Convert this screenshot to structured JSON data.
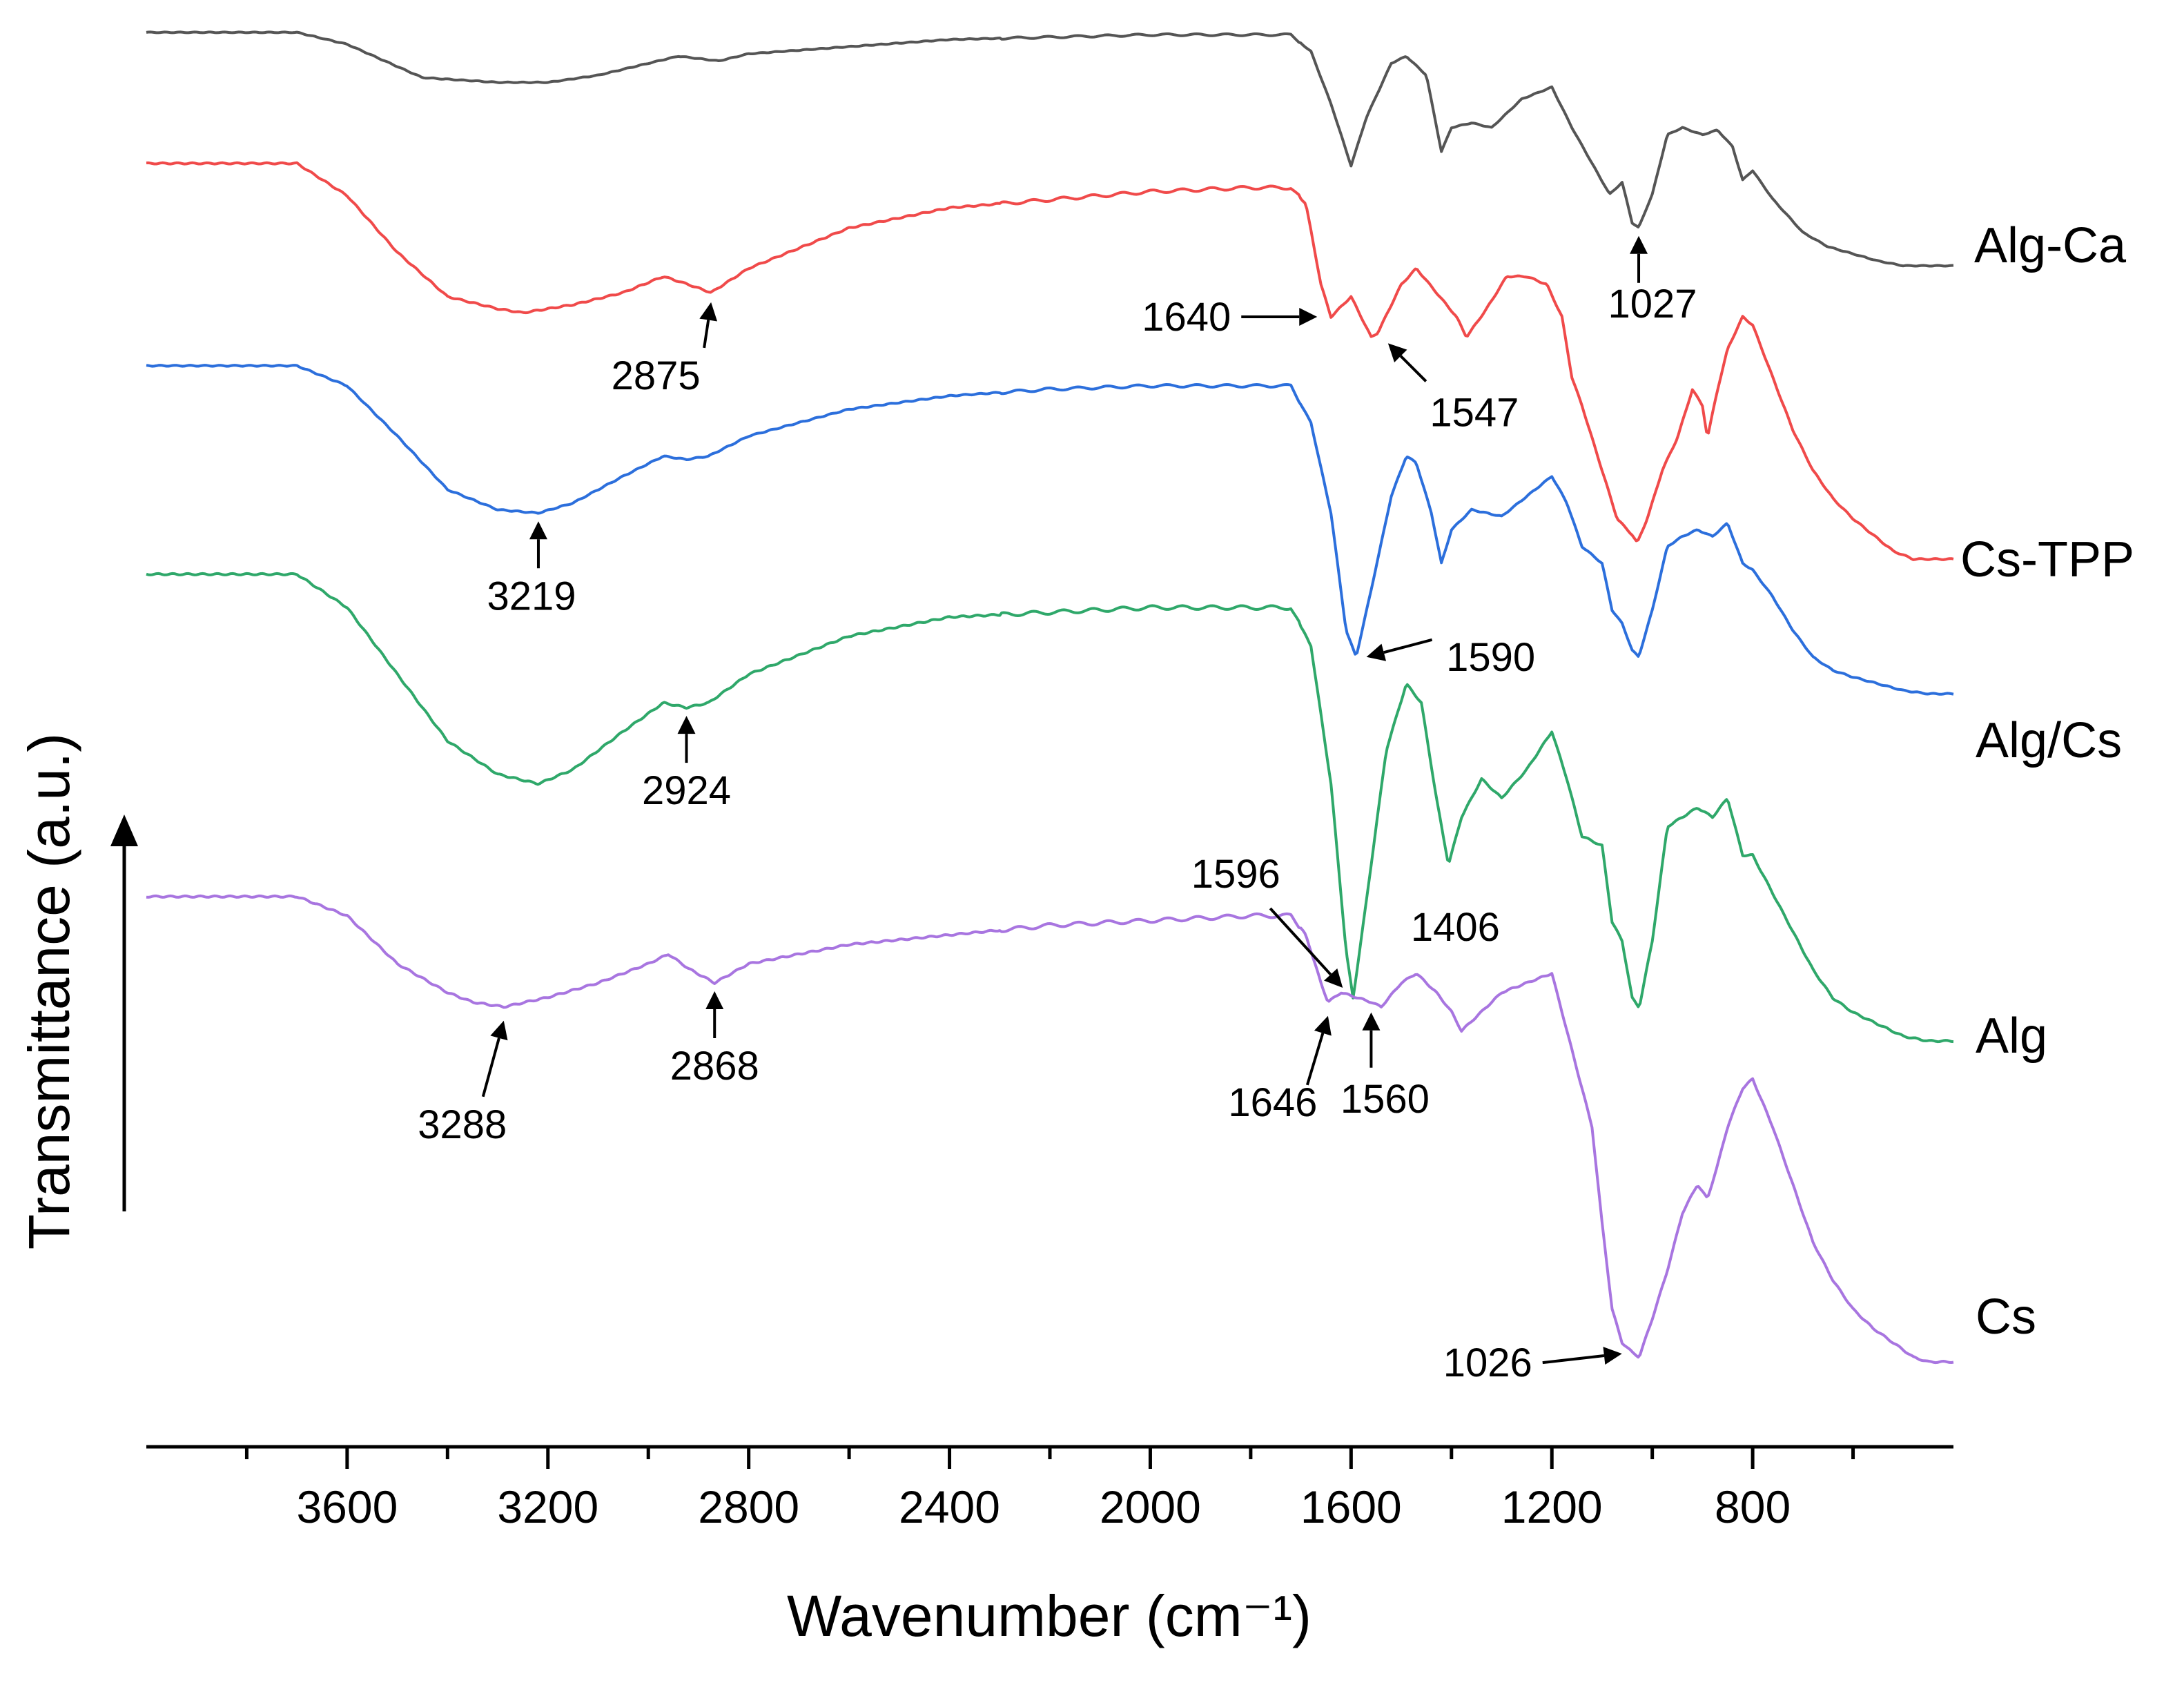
{
  "chart_data": {
    "type": "line",
    "title": "",
    "xlabel": "Wavenumber (cm⁻¹)",
    "ylabel": "Transmittance (a.u.)",
    "xlim": [
      4000,
      400
    ],
    "x_reversed": true,
    "xticks": [
      3600,
      3200,
      2800,
      2400,
      2000,
      1600,
      1200,
      800
    ],
    "minor_tick_step": 200,
    "grid": false,
    "y_units": "offset transmittance (a.u.)",
    "series": [
      {
        "name": "Alg-Ca",
        "color": "#555555",
        "points": [
          [
            4000,
            0.98
          ],
          [
            3700,
            0.98
          ],
          [
            3600,
            0.93
          ],
          [
            3450,
            0.79
          ],
          [
            3300,
            0.77
          ],
          [
            3200,
            0.77
          ],
          [
            3100,
            0.8
          ],
          [
            3000,
            0.85
          ],
          [
            2940,
            0.88
          ],
          [
            2900,
            0.87
          ],
          [
            2860,
            0.86
          ],
          [
            2800,
            0.89
          ],
          [
            2600,
            0.92
          ],
          [
            2400,
            0.95
          ],
          [
            2200,
            0.96
          ],
          [
            2000,
            0.97
          ],
          [
            1800,
            0.97
          ],
          [
            1720,
            0.97
          ],
          [
            1680,
            0.9
          ],
          [
            1640,
            0.68
          ],
          [
            1600,
            0.42
          ],
          [
            1570,
            0.62
          ],
          [
            1520,
            0.85
          ],
          [
            1490,
            0.88
          ],
          [
            1450,
            0.8
          ],
          [
            1420,
            0.48
          ],
          [
            1400,
            0.58
          ],
          [
            1360,
            0.6
          ],
          [
            1320,
            0.58
          ],
          [
            1260,
            0.7
          ],
          [
            1200,
            0.75
          ],
          [
            1160,
            0.58
          ],
          [
            1120,
            0.43
          ],
          [
            1085,
            0.3
          ],
          [
            1060,
            0.35
          ],
          [
            1040,
            0.18
          ],
          [
            1027,
            0.16
          ],
          [
            1000,
            0.3
          ],
          [
            970,
            0.55
          ],
          [
            940,
            0.58
          ],
          [
            900,
            0.55
          ],
          [
            870,
            0.57
          ],
          [
            840,
            0.5
          ],
          [
            820,
            0.36
          ],
          [
            800,
            0.4
          ],
          [
            760,
            0.28
          ],
          [
            700,
            0.14
          ],
          [
            650,
            0.08
          ],
          [
            600,
            0.05
          ],
          [
            550,
            0.02
          ],
          [
            500,
            0.0
          ],
          [
            450,
            0.0
          ]
        ],
        "peaks": [
          1027
        ]
      },
      {
        "name": "Cs-TPP",
        "color": "#f04a4a",
        "points": [
          [
            4000,
            0.98
          ],
          [
            3700,
            0.98
          ],
          [
            3600,
            0.9
          ],
          [
            3500,
            0.76
          ],
          [
            3400,
            0.65
          ],
          [
            3300,
            0.62
          ],
          [
            3250,
            0.61
          ],
          [
            3150,
            0.63
          ],
          [
            3050,
            0.66
          ],
          [
            2970,
            0.7
          ],
          [
            2920,
            0.68
          ],
          [
            2875,
            0.66
          ],
          [
            2800,
            0.72
          ],
          [
            2600,
            0.82
          ],
          [
            2400,
            0.87
          ],
          [
            2200,
            0.89
          ],
          [
            2000,
            0.91
          ],
          [
            1800,
            0.92
          ],
          [
            1720,
            0.92
          ],
          [
            1690,
            0.88
          ],
          [
            1660,
            0.68
          ],
          [
            1640,
            0.6
          ],
          [
            1600,
            0.65
          ],
          [
            1560,
            0.55
          ],
          [
            1547,
            0.56
          ],
          [
            1500,
            0.68
          ],
          [
            1470,
            0.72
          ],
          [
            1430,
            0.66
          ],
          [
            1390,
            0.6
          ],
          [
            1370,
            0.55
          ],
          [
            1330,
            0.62
          ],
          [
            1290,
            0.7
          ],
          [
            1250,
            0.7
          ],
          [
            1210,
            0.68
          ],
          [
            1180,
            0.6
          ],
          [
            1160,
            0.45
          ],
          [
            1140,
            0.38
          ],
          [
            1100,
            0.22
          ],
          [
            1070,
            0.1
          ],
          [
            1040,
            0.06
          ],
          [
            1030,
            0.04
          ],
          [
            1010,
            0.1
          ],
          [
            980,
            0.22
          ],
          [
            950,
            0.3
          ],
          [
            920,
            0.42
          ],
          [
            900,
            0.38
          ],
          [
            890,
            0.3
          ],
          [
            870,
            0.42
          ],
          [
            850,
            0.52
          ],
          [
            820,
            0.6
          ],
          [
            800,
            0.58
          ],
          [
            760,
            0.45
          ],
          [
            720,
            0.32
          ],
          [
            680,
            0.22
          ],
          [
            640,
            0.15
          ],
          [
            600,
            0.1
          ],
          [
            560,
            0.06
          ],
          [
            520,
            0.02
          ],
          [
            480,
            0.0
          ],
          [
            450,
            0.0
          ]
        ],
        "peaks": [
          2875,
          1640,
          1547
        ]
      },
      {
        "name": "Alg/Cs",
        "color": "#2c6fdc",
        "points": [
          [
            4000,
            0.99
          ],
          [
            3700,
            0.99
          ],
          [
            3600,
            0.93
          ],
          [
            3500,
            0.78
          ],
          [
            3400,
            0.62
          ],
          [
            3300,
            0.56
          ],
          [
            3219,
            0.55
          ],
          [
            3150,
            0.58
          ],
          [
            3050,
            0.66
          ],
          [
            2970,
            0.72
          ],
          [
            2924,
            0.71
          ],
          [
            2880,
            0.72
          ],
          [
            2800,
            0.78
          ],
          [
            2600,
            0.86
          ],
          [
            2400,
            0.9
          ],
          [
            2200,
            0.92
          ],
          [
            2000,
            0.93
          ],
          [
            1800,
            0.93
          ],
          [
            1720,
            0.93
          ],
          [
            1680,
            0.82
          ],
          [
            1640,
            0.55
          ],
          [
            1610,
            0.2
          ],
          [
            1590,
            0.12
          ],
          [
            1560,
            0.32
          ],
          [
            1520,
            0.6
          ],
          [
            1490,
            0.72
          ],
          [
            1470,
            0.7
          ],
          [
            1440,
            0.55
          ],
          [
            1420,
            0.4
          ],
          [
            1400,
            0.5
          ],
          [
            1360,
            0.56
          ],
          [
            1300,
            0.54
          ],
          [
            1250,
            0.6
          ],
          [
            1200,
            0.66
          ],
          [
            1170,
            0.58
          ],
          [
            1140,
            0.45
          ],
          [
            1100,
            0.4
          ],
          [
            1080,
            0.26
          ],
          [
            1060,
            0.22
          ],
          [
            1040,
            0.14
          ],
          [
            1027,
            0.12
          ],
          [
            1000,
            0.26
          ],
          [
            970,
            0.45
          ],
          [
            940,
            0.48
          ],
          [
            910,
            0.5
          ],
          [
            880,
            0.48
          ],
          [
            850,
            0.52
          ],
          [
            820,
            0.4
          ],
          [
            800,
            0.38
          ],
          [
            760,
            0.3
          ],
          [
            720,
            0.2
          ],
          [
            680,
            0.12
          ],
          [
            640,
            0.08
          ],
          [
            600,
            0.06
          ],
          [
            550,
            0.04
          ],
          [
            500,
            0.02
          ],
          [
            450,
            0.01
          ]
        ],
        "peaks": [
          3219,
          1590
        ]
      },
      {
        "name": "Alg",
        "color": "#2fa86a",
        "points": [
          [
            4000,
            0.99
          ],
          [
            3700,
            0.99
          ],
          [
            3600,
            0.92
          ],
          [
            3500,
            0.78
          ],
          [
            3400,
            0.64
          ],
          [
            3300,
            0.57
          ],
          [
            3219,
            0.55
          ],
          [
            3150,
            0.58
          ],
          [
            3050,
            0.66
          ],
          [
            2970,
            0.72
          ],
          [
            2924,
            0.71
          ],
          [
            2880,
            0.72
          ],
          [
            2800,
            0.78
          ],
          [
            2600,
            0.86
          ],
          [
            2400,
            0.9
          ],
          [
            2200,
            0.91
          ],
          [
            2000,
            0.92
          ],
          [
            1800,
            0.92
          ],
          [
            1720,
            0.92
          ],
          [
            1680,
            0.84
          ],
          [
            1640,
            0.55
          ],
          [
            1610,
            0.2
          ],
          [
            1596,
            0.1
          ],
          [
            1570,
            0.3
          ],
          [
            1530,
            0.62
          ],
          [
            1490,
            0.76
          ],
          [
            1460,
            0.72
          ],
          [
            1430,
            0.52
          ],
          [
            1406,
            0.38
          ],
          [
            1380,
            0.48
          ],
          [
            1340,
            0.56
          ],
          [
            1300,
            0.52
          ],
          [
            1250,
            0.58
          ],
          [
            1200,
            0.66
          ],
          [
            1170,
            0.56
          ],
          [
            1140,
            0.44
          ],
          [
            1100,
            0.42
          ],
          [
            1080,
            0.26
          ],
          [
            1060,
            0.22
          ],
          [
            1040,
            0.1
          ],
          [
            1026,
            0.08
          ],
          [
            1000,
            0.22
          ],
          [
            970,
            0.46
          ],
          [
            940,
            0.48
          ],
          [
            910,
            0.5
          ],
          [
            880,
            0.48
          ],
          [
            850,
            0.52
          ],
          [
            820,
            0.4
          ],
          [
            800,
            0.4
          ],
          [
            760,
            0.32
          ],
          [
            720,
            0.24
          ],
          [
            680,
            0.16
          ],
          [
            640,
            0.1
          ],
          [
            600,
            0.07
          ],
          [
            560,
            0.05
          ],
          [
            500,
            0.02
          ],
          [
            450,
            0.01
          ]
        ],
        "peaks": [
          2924,
          1596,
          1406
        ]
      },
      {
        "name": "Cs",
        "color": "#a875e0",
        "points": [
          [
            4000,
            0.98
          ],
          [
            3700,
            0.98
          ],
          [
            3600,
            0.94
          ],
          [
            3500,
            0.84
          ],
          [
            3400,
            0.78
          ],
          [
            3350,
            0.76
          ],
          [
            3288,
            0.75
          ],
          [
            3200,
            0.77
          ],
          [
            3100,
            0.8
          ],
          [
            3000,
            0.84
          ],
          [
            2960,
            0.86
          ],
          [
            2920,
            0.83
          ],
          [
            2868,
            0.8
          ],
          [
            2800,
            0.84
          ],
          [
            2600,
            0.88
          ],
          [
            2400,
            0.9
          ],
          [
            2200,
            0.92
          ],
          [
            2000,
            0.93
          ],
          [
            1800,
            0.94
          ],
          [
            1720,
            0.94
          ],
          [
            1690,
            0.9
          ],
          [
            1660,
            0.8
          ],
          [
            1646,
            0.76
          ],
          [
            1620,
            0.78
          ],
          [
            1560,
            0.76
          ],
          [
            1540,
            0.75
          ],
          [
            1500,
            0.8
          ],
          [
            1470,
            0.82
          ],
          [
            1430,
            0.78
          ],
          [
            1400,
            0.74
          ],
          [
            1380,
            0.7
          ],
          [
            1340,
            0.74
          ],
          [
            1300,
            0.78
          ],
          [
            1250,
            0.8
          ],
          [
            1200,
            0.82
          ],
          [
            1170,
            0.7
          ],
          [
            1150,
            0.62
          ],
          [
            1120,
            0.5
          ],
          [
            1100,
            0.3
          ],
          [
            1080,
            0.12
          ],
          [
            1060,
            0.05
          ],
          [
            1040,
            0.03
          ],
          [
            1026,
            0.02
          ],
          [
            1000,
            0.1
          ],
          [
            970,
            0.2
          ],
          [
            940,
            0.32
          ],
          [
            910,
            0.38
          ],
          [
            890,
            0.35
          ],
          [
            870,
            0.42
          ],
          [
            850,
            0.5
          ],
          [
            820,
            0.58
          ],
          [
            800,
            0.6
          ],
          [
            760,
            0.5
          ],
          [
            720,
            0.38
          ],
          [
            680,
            0.26
          ],
          [
            640,
            0.18
          ],
          [
            600,
            0.12
          ],
          [
            560,
            0.08
          ],
          [
            520,
            0.05
          ],
          [
            480,
            0.02
          ],
          [
            450,
            0.01
          ]
        ],
        "peaks": [
          3288,
          2868,
          1646,
          1560,
          1026
        ]
      }
    ],
    "annotations": [
      {
        "text": "1027",
        "series": "Alg-Ca",
        "x": 1027
      },
      {
        "text": "2875",
        "series": "Cs-TPP",
        "x": 2875
      },
      {
        "text": "1640",
        "series": "Cs-TPP",
        "x": 1640
      },
      {
        "text": "1547",
        "series": "Cs-TPP",
        "x": 1547
      },
      {
        "text": "3219",
        "series": "Alg/Cs",
        "x": 3219
      },
      {
        "text": "1590",
        "series": "Alg/Cs",
        "x": 1590
      },
      {
        "text": "2924",
        "series": "Alg",
        "x": 2924
      },
      {
        "text": "1596",
        "series": "Alg",
        "x": 1596
      },
      {
        "text": "1406",
        "series": "Alg",
        "x": 1406
      },
      {
        "text": "3288",
        "series": "Cs",
        "x": 3288
      },
      {
        "text": "2868",
        "series": "Cs",
        "x": 2868
      },
      {
        "text": "1646",
        "series": "Cs",
        "x": 1646
      },
      {
        "text": "1560",
        "series": "Cs",
        "x": 1560
      },
      {
        "text": "1026",
        "series": "Cs",
        "x": 1026
      }
    ]
  }
}
